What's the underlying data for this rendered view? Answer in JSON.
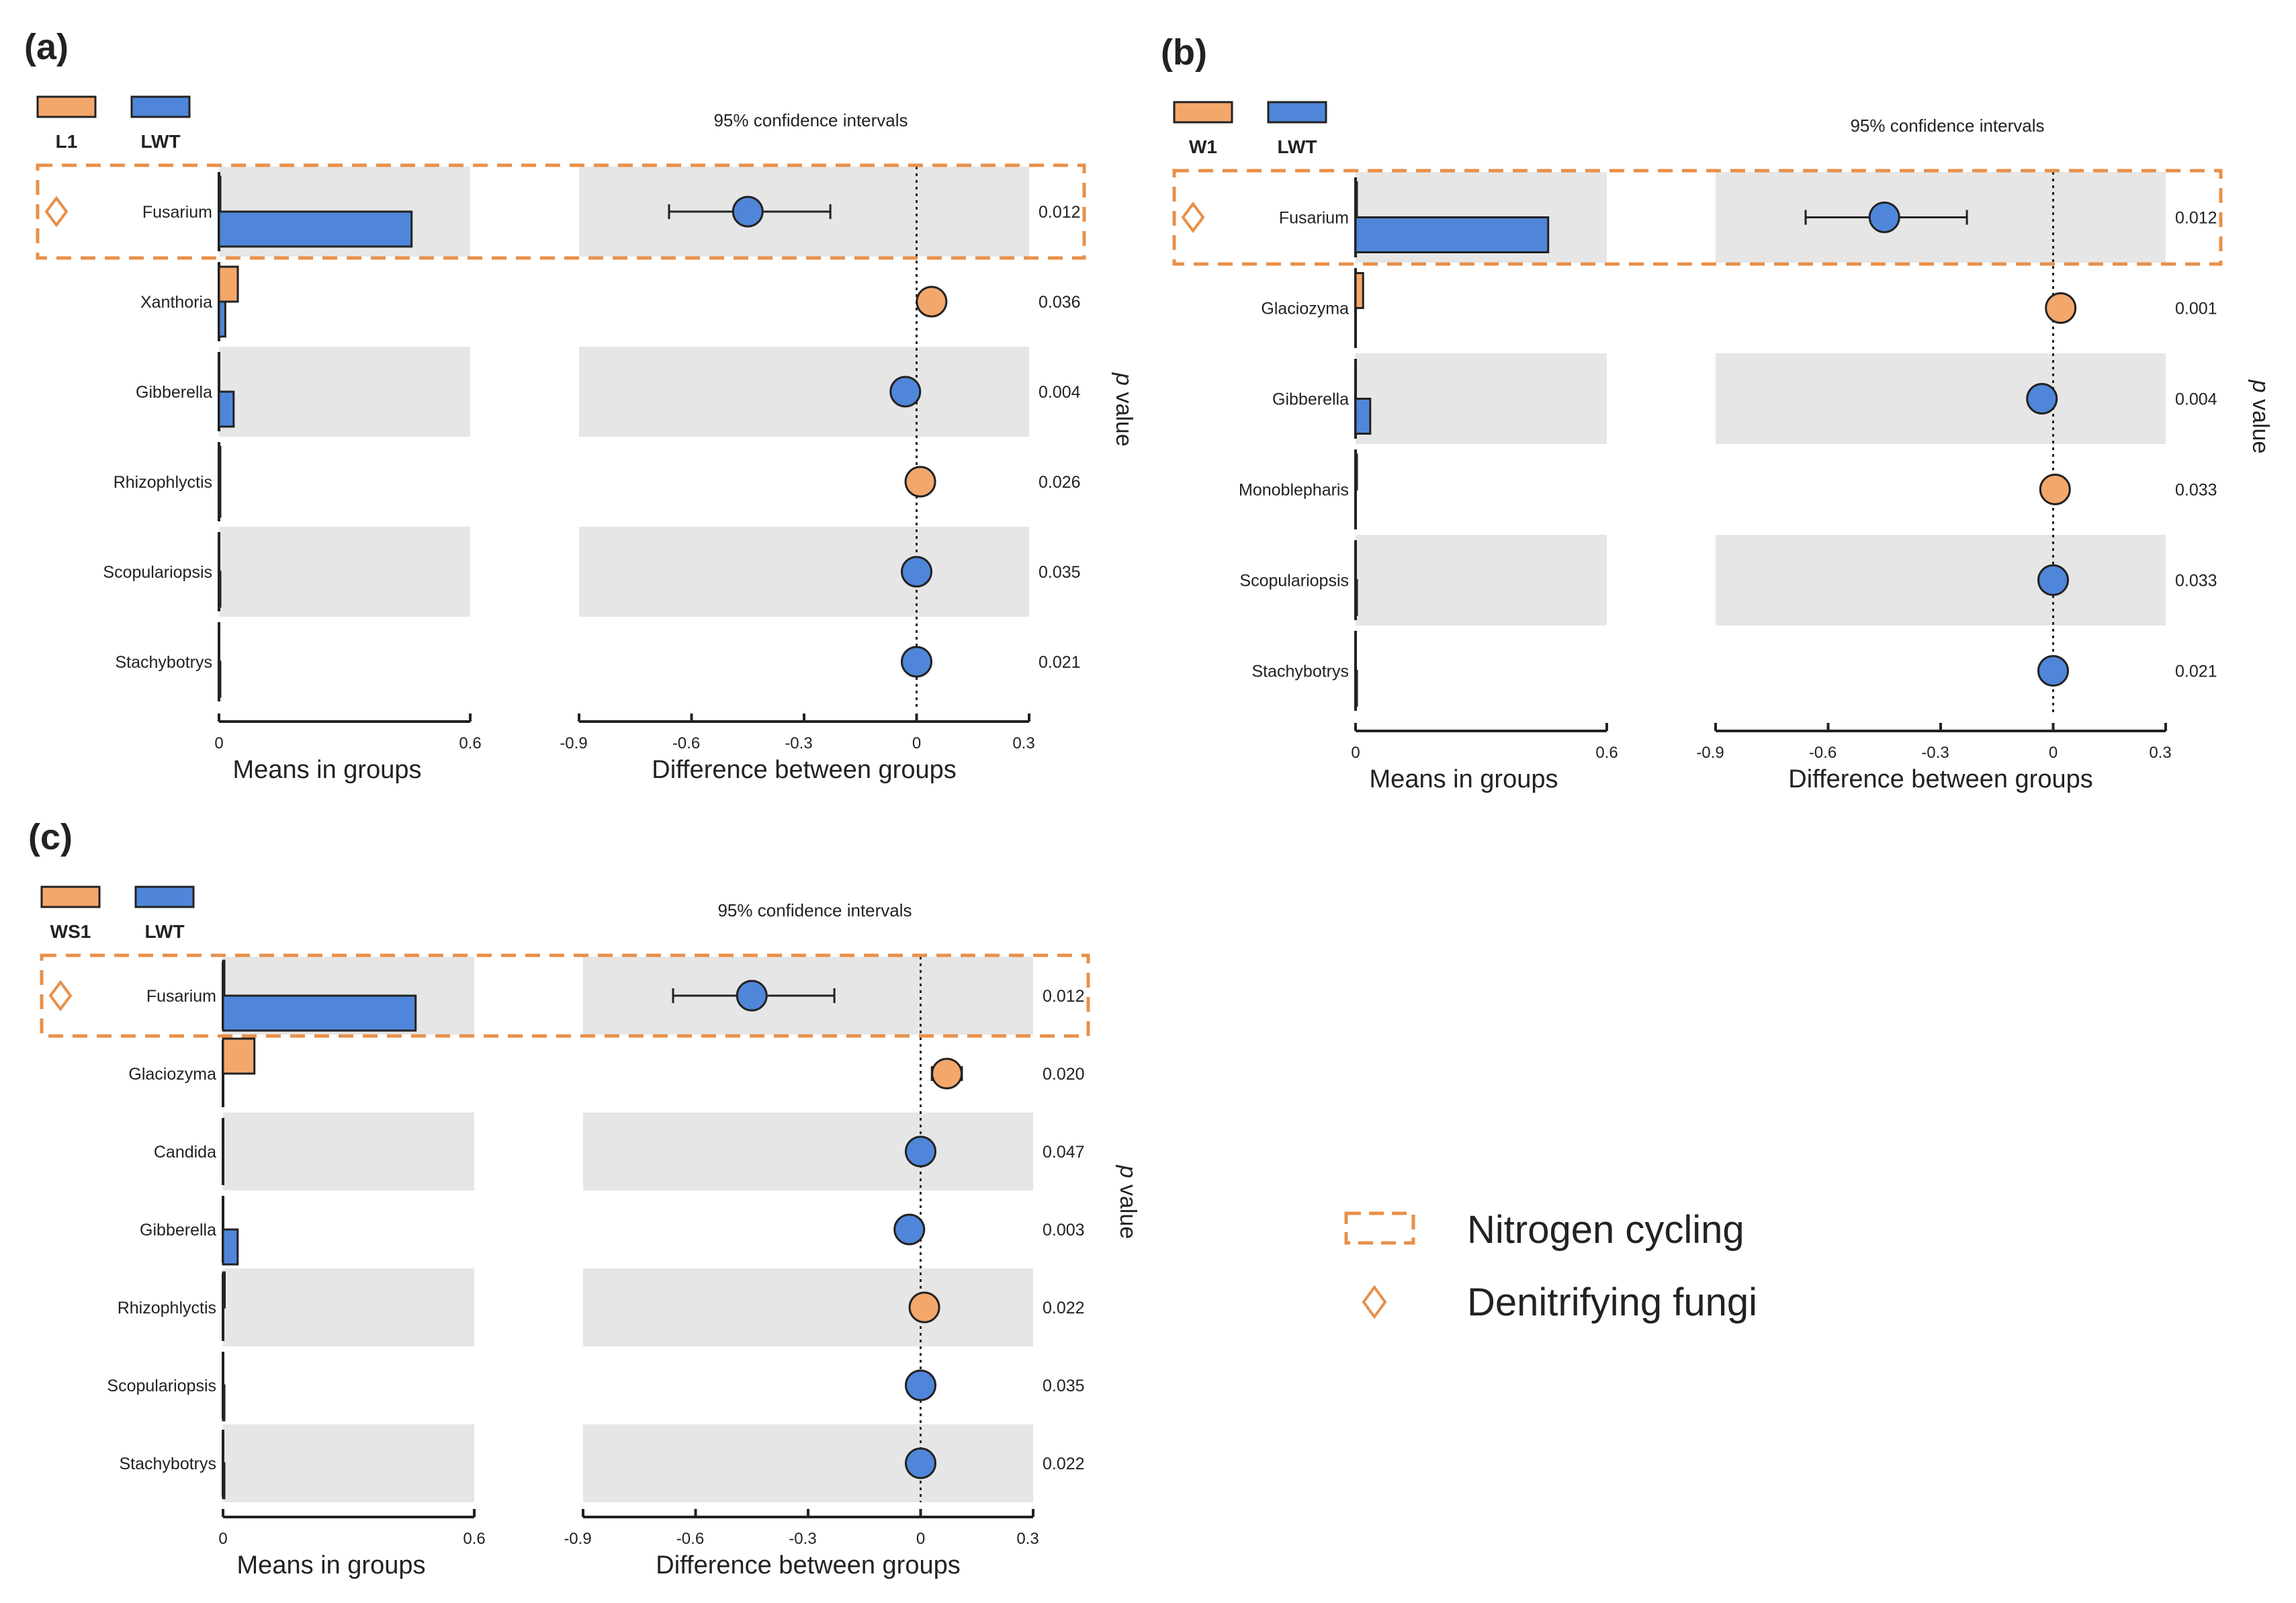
{
  "colors": {
    "orange": "#F4A76B",
    "blue": "#4F86D9",
    "band": "#E6E6E6",
    "highlight": "#E8904A",
    "ink": "#222222"
  },
  "legend": {
    "nitrogen_label": "Nitrogen cycling",
    "denitrifying_label": "Denitrifying fungi"
  },
  "chart_data": [
    {
      "type": "bar",
      "panel_label": "(a)",
      "groups": [
        "L1",
        "LWT"
      ],
      "ci_title": "95% confidence intervals",
      "pvalue_label": "p value",
      "xlabel_means": "Means in groups",
      "xlabel_diff": "Difference between groups",
      "means_ticks": [
        "0",
        "0.6"
      ],
      "diff_ticks": [
        "-0.9",
        "-0.6",
        "-0.3",
        "0",
        "0.3"
      ],
      "means_range": [
        0,
        0.6
      ],
      "diff_range": [
        -0.9,
        0.3
      ],
      "highlight_index": 0,
      "categories": [
        "Fusarium",
        "Xanthoria",
        "Gibberella",
        "Rhizophlyctis",
        "Scopulariopsis",
        "Stachybotrys"
      ],
      "series": [
        {
          "name": "L1",
          "values": [
            0.002,
            0.045,
            0.0,
            0.003,
            0.0,
            0.0
          ]
        },
        {
          "name": "LWT",
          "values": [
            0.46,
            0.015,
            0.035,
            0.003,
            0.002,
            0.002
          ]
        }
      ],
      "difference": [
        -0.45,
        0.04,
        -0.03,
        0.01,
        0.0,
        0.0
      ],
      "ci_low": [
        -0.66,
        0.02,
        -0.05,
        -0.003,
        -0.005,
        -0.005
      ],
      "ci_high": [
        -0.23,
        0.07,
        -0.01,
        0.03,
        0.015,
        0.015
      ],
      "p_values": [
        "0.012",
        "0.036",
        "0.004",
        "0.026",
        "0.035",
        "0.021"
      ]
    },
    {
      "type": "bar",
      "panel_label": "(b)",
      "groups": [
        "W1",
        "LWT"
      ],
      "ci_title": "95% confidence intervals",
      "pvalue_label": "p value",
      "xlabel_means": "Means in groups",
      "xlabel_diff": "Difference between groups",
      "means_ticks": [
        "0",
        "0.6"
      ],
      "diff_ticks": [
        "-0.9",
        "-0.6",
        "-0.3",
        "0",
        "0.3"
      ],
      "means_range": [
        0,
        0.6
      ],
      "diff_range": [
        -0.9,
        0.3
      ],
      "highlight_index": 0,
      "categories": [
        "Fusarium",
        "Glaciozyma",
        "Gibberella",
        "Monoblepharis",
        "Scopulariopsis",
        "Stachybotrys"
      ],
      "series": [
        {
          "name": "W1",
          "values": [
            0.002,
            0.018,
            0.0,
            0.002,
            0.0,
            0.0
          ]
        },
        {
          "name": "LWT",
          "values": [
            0.46,
            0.0,
            0.035,
            0.0,
            0.002,
            0.002
          ]
        }
      ],
      "difference": [
        -0.45,
        0.02,
        -0.03,
        0.005,
        0.0,
        0.0
      ],
      "ci_low": [
        -0.66,
        0.005,
        -0.05,
        -0.005,
        -0.005,
        -0.005
      ],
      "ci_high": [
        -0.23,
        0.04,
        -0.01,
        0.02,
        0.015,
        0.015
      ],
      "p_values": [
        "0.012",
        "0.001",
        "0.004",
        "0.033",
        "0.033",
        "0.021"
      ]
    },
    {
      "type": "bar",
      "panel_label": "(c)",
      "groups": [
        "WS1",
        "LWT"
      ],
      "ci_title": "95% confidence intervals",
      "pvalue_label": "p value",
      "xlabel_means": "Means in groups",
      "xlabel_diff": "Difference between groups",
      "means_ticks": [
        "0",
        "0.6"
      ],
      "diff_ticks": [
        "-0.9",
        "-0.6",
        "-0.3",
        "0",
        "0.3"
      ],
      "means_range": [
        0,
        0.6
      ],
      "diff_range": [
        -0.9,
        0.3
      ],
      "highlight_index": 0,
      "categories": [
        "Fusarium",
        "Glaciozyma",
        "Candida",
        "Gibberella",
        "Rhizophlyctis",
        "Scopulariopsis",
        "Stachybotrys"
      ],
      "series": [
        {
          "name": "WS1",
          "values": [
            0.002,
            0.075,
            0.0,
            0.0,
            0.004,
            0.0,
            0.0
          ]
        },
        {
          "name": "LWT",
          "values": [
            0.46,
            0.0,
            0.0,
            0.035,
            0.0,
            0.003,
            0.002
          ]
        }
      ],
      "difference": [
        -0.45,
        0.07,
        0.0,
        -0.03,
        0.01,
        0.0,
        0.0
      ],
      "ci_low": [
        -0.66,
        0.03,
        -0.01,
        -0.05,
        -0.003,
        -0.005,
        -0.005
      ],
      "ci_high": [
        -0.23,
        0.11,
        0.015,
        -0.01,
        0.025,
        0.015,
        0.015
      ],
      "p_values": [
        "0.012",
        "0.020",
        "0.047",
        "0.003",
        "0.022",
        "0.035",
        "0.022"
      ]
    }
  ]
}
